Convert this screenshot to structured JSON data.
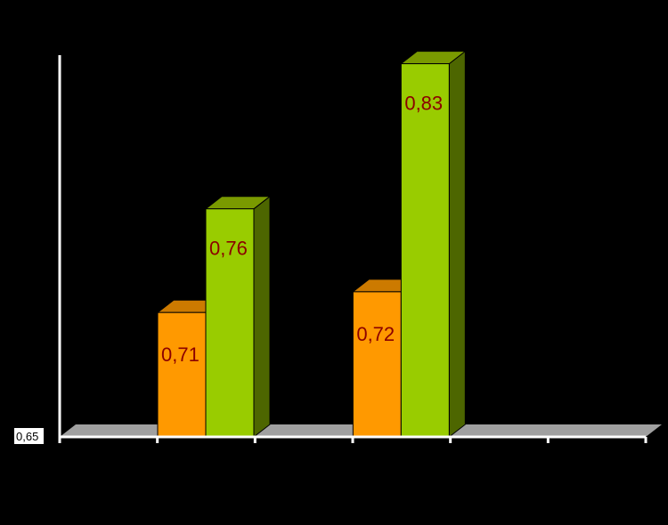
{
  "chart_data": {
    "type": "bar",
    "title": "",
    "xlabel": "",
    "ylabel": "",
    "categories": [
      "",
      "",
      ""
    ],
    "series": [
      {
        "values": [
          0.71,
          0.72,
          null
        ],
        "display": [
          "0,71",
          "0,72",
          ""
        ]
      },
      {
        "values": [
          0.76,
          0.83,
          null
        ],
        "display": [
          "0,76",
          "0,83",
          ""
        ]
      }
    ],
    "ylim": [
      0.65,
      0.84
    ],
    "y_ticks": [
      {
        "value": 0.65,
        "label": "0,65"
      }
    ],
    "three_d": true,
    "grid": false,
    "legend": "none",
    "colors": {
      "background": "#000000",
      "axis": "#ffffff",
      "floor": "#a0a0a0",
      "series_front": [
        "#ff9900",
        "#99cc00"
      ],
      "series_top": [
        "#cc7a00",
        "#7a9a00"
      ],
      "series_side": [
        "#996000",
        "#4d6600"
      ],
      "outline": "#000000",
      "label": "#8b0000"
    }
  }
}
